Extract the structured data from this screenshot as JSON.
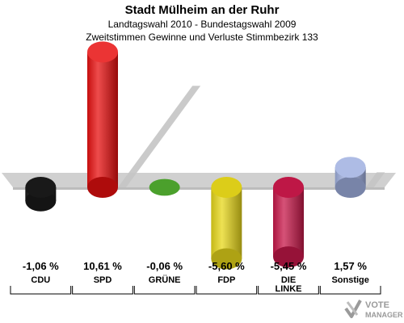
{
  "header": {
    "title": "Stadt Mülheim an der Ruhr",
    "subtitle1": "Landtagswahl 2010 - Bundestagswahl 2009",
    "subtitle2": "Zweitstimmen Gewinne und Verluste Stimmbezirk 133"
  },
  "chart_data": {
    "type": "bar",
    "categories": [
      "CDU",
      "SPD",
      "GRÜNE",
      "FDP",
      "DIE LINKE",
      "Sonstige"
    ],
    "category_lines": [
      [
        "CDU"
      ],
      [
        "SPD"
      ],
      [
        "GRÜNE"
      ],
      [
        "FDP"
      ],
      [
        "DIE",
        "LINKE"
      ],
      [
        "Sonstige"
      ]
    ],
    "values": [
      -1.06,
      10.61,
      -0.06,
      -5.6,
      -5.45,
      1.57
    ],
    "value_labels": [
      "-1,06 %",
      "10,61 %",
      "-0,06 %",
      "-5,60 %",
      "-5,45 %",
      "1,57 %"
    ],
    "colors": [
      "#1a1a1a",
      "#e81010",
      "#4fa82e",
      "#e8d81a",
      "#c8184a",
      "#a0b0e0"
    ],
    "title": "Stadt Mülheim an der Ruhr",
    "xlabel": "",
    "ylabel": "",
    "grid": false
  },
  "logo": {
    "line1": "VOTE",
    "line2": "MANAGER"
  }
}
